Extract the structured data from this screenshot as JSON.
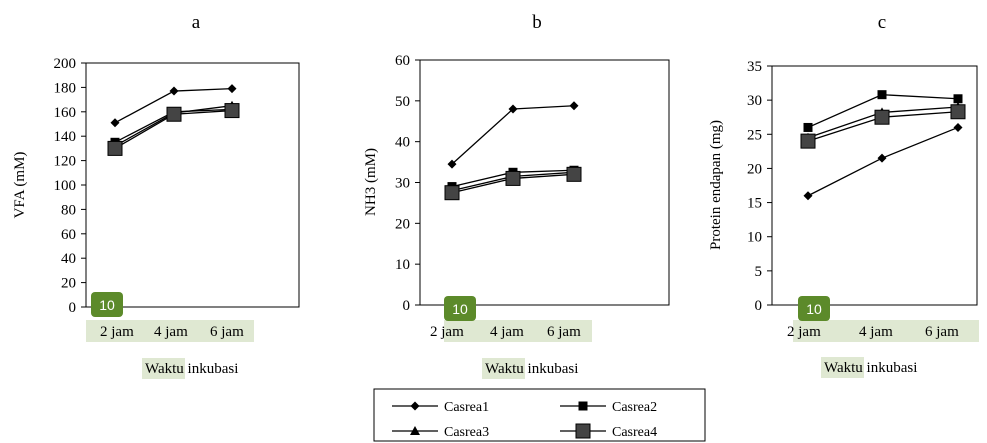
{
  "colors": {
    "line": "#000000",
    "casrea4_fill": "#444444",
    "highlight": "#dfe8d2",
    "badge": "#5c8a2a",
    "badge_text": "#ffffff"
  },
  "badge_label": "10",
  "legend": {
    "entries": [
      {
        "label": "Casrea1",
        "marker": "diamond"
      },
      {
        "label": "Casrea2",
        "marker": "square"
      },
      {
        "label": "Casrea3",
        "marker": "triangle"
      },
      {
        "label": "Casrea4",
        "marker": "square-large"
      }
    ]
  },
  "chart_data": [
    {
      "type": "line",
      "panel_label": "a",
      "title": "",
      "xlabel_parts": [
        "Waktu",
        "inkubasi"
      ],
      "ylabel": "VFA (mM)",
      "categories": [
        "2 jam",
        "4 jam",
        "6 jam"
      ],
      "ylim": [
        0,
        200
      ],
      "yticks": [
        "0",
        "20",
        "40",
        "60",
        "80",
        "100",
        "120",
        "140",
        "160",
        "180",
        "200"
      ],
      "grid": false,
      "series": [
        {
          "name": "Casrea1",
          "marker": "diamond",
          "values": [
            151,
            177,
            179
          ]
        },
        {
          "name": "Casrea2",
          "marker": "square",
          "values": [
            135,
            160,
            162
          ]
        },
        {
          "name": "Casrea3",
          "marker": "triangle",
          "values": [
            132,
            159,
            165
          ]
        },
        {
          "name": "Casrea4",
          "marker": "square-large",
          "values": [
            130,
            158,
            161
          ]
        }
      ]
    },
    {
      "type": "line",
      "panel_label": "b",
      "title": "",
      "xlabel_parts": [
        "Waktu",
        "inkubasi"
      ],
      "ylabel": "NH3 (mM)",
      "categories": [
        "2 jam",
        "4 jam",
        "6 jam"
      ],
      "ylim": [
        0,
        60
      ],
      "yticks": [
        "0",
        "10",
        "20",
        "30",
        "40",
        "50",
        "60"
      ],
      "grid": false,
      "series": [
        {
          "name": "Casrea1",
          "marker": "diamond",
          "values": [
            34.5,
            48,
            48.8
          ]
        },
        {
          "name": "Casrea2",
          "marker": "square",
          "values": [
            29,
            32.5,
            33
          ]
        },
        {
          "name": "Casrea3",
          "marker": "triangle",
          "values": [
            28,
            31.5,
            32.5
          ]
        },
        {
          "name": "Casrea4",
          "marker": "square-large",
          "values": [
            27.5,
            31,
            32
          ]
        }
      ]
    },
    {
      "type": "line",
      "panel_label": "c",
      "title": "",
      "xlabel_parts": [
        "Waktu",
        "inkubasi"
      ],
      "ylabel": "Protein endapan (mg)",
      "categories": [
        "2 jam",
        "4 jam",
        "6 jam"
      ],
      "ylim": [
        0,
        35
      ],
      "yticks": [
        "0",
        "5",
        "10",
        "15",
        "20",
        "25",
        "30",
        "35"
      ],
      "grid": false,
      "series": [
        {
          "name": "Casrea1",
          "marker": "diamond",
          "values": [
            16,
            21.5,
            26
          ]
        },
        {
          "name": "Casrea2",
          "marker": "square",
          "values": [
            26,
            30.8,
            30.2
          ]
        },
        {
          "name": "Casrea3",
          "marker": "triangle",
          "values": [
            24.5,
            28.2,
            29
          ]
        },
        {
          "name": "Casrea4",
          "marker": "square-large",
          "values": [
            24,
            27.5,
            28.3
          ]
        }
      ]
    }
  ]
}
